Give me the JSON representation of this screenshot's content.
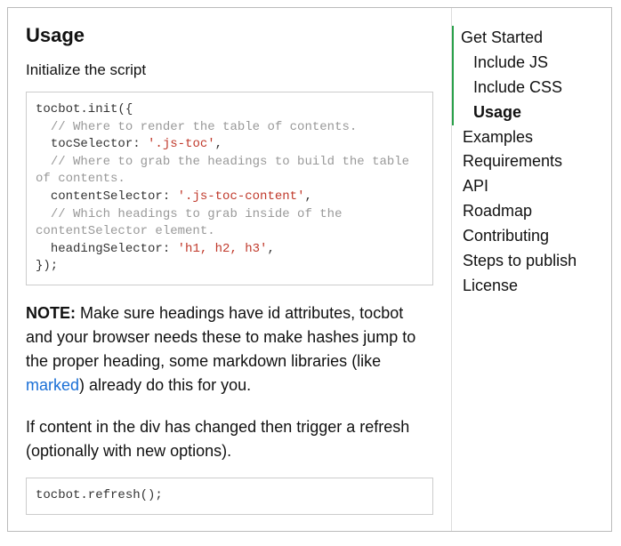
{
  "main": {
    "heading": "Usage",
    "intro": "Initialize the script",
    "code1": {
      "lines": [
        {
          "text": "tocbot.init({"
        },
        {
          "indent": 1,
          "comment": "// Where to render the table of contents."
        },
        {
          "indent": 1,
          "key": "tocSelector:",
          "string": "'.js-toc'",
          "post": ","
        },
        {
          "indent": 1,
          "comment": "// Where to grab the headings to build the table of contents."
        },
        {
          "indent": 1,
          "key": "contentSelector:",
          "string": "'.js-toc-content'",
          "post": ","
        },
        {
          "indent": 1,
          "comment": "// Which headings to grab inside of the contentSelector element."
        },
        {
          "indent": 1,
          "key": "headingSelector:",
          "string": "'h1, h2, h3'",
          "post": ","
        },
        {
          "text": "});"
        }
      ]
    },
    "note_label": "NOTE:",
    "note_text_before": " Make sure headings have id attributes, tocbot and your browser needs these to make hashes jump to the proper heading, some markdown libraries (like ",
    "note_link_text": "marked",
    "note_text_after": ") already do this for you.",
    "para2": "If content in the div has changed then trigger a refresh (optionally with new options).",
    "code2": "tocbot.refresh();"
  },
  "toc": {
    "items": [
      {
        "label": "Get Started",
        "level": 1,
        "active": false
      },
      {
        "label": "Include JS",
        "level": 2,
        "active": false
      },
      {
        "label": "Include CSS",
        "level": 2,
        "active": false
      },
      {
        "label": "Usage",
        "level": 2,
        "active": true
      },
      {
        "label": "Examples",
        "level": 1,
        "active": false
      },
      {
        "label": "Requirements",
        "level": 1,
        "active": false
      },
      {
        "label": "API",
        "level": 1,
        "active": false
      },
      {
        "label": "Roadmap",
        "level": 1,
        "active": false
      },
      {
        "label": "Contributing",
        "level": 1,
        "active": false
      },
      {
        "label": "Steps to publish",
        "level": 1,
        "active": false
      },
      {
        "label": "License",
        "level": 1,
        "active": false
      }
    ]
  },
  "colors": {
    "accent_green": "#2aa04a",
    "string_red": "#c0392b",
    "comment_grey": "#999999",
    "link_blue": "#1a6fd6",
    "border_grey": "#cccccc"
  }
}
